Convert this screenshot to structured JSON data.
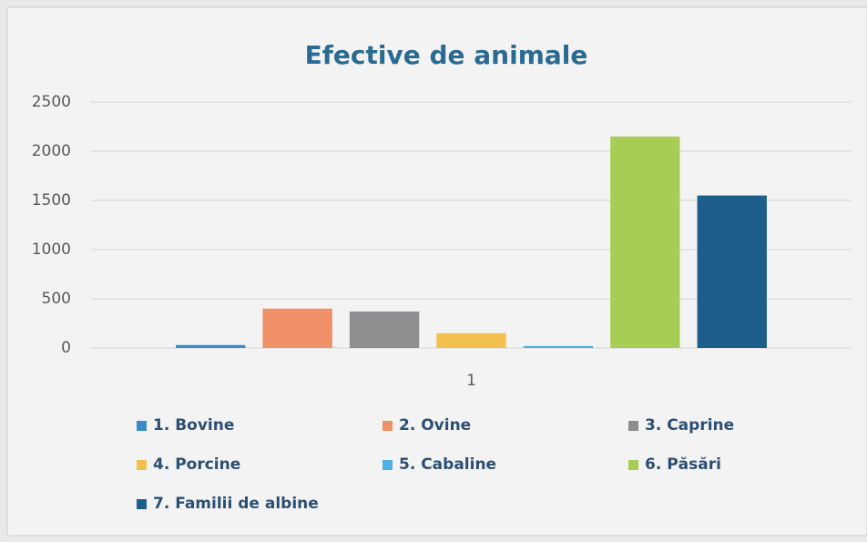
{
  "chart_data": {
    "type": "bar",
    "title": "Efective de animale",
    "categories": [
      "1"
    ],
    "series": [
      {
        "name": "1. Bovine",
        "color": "#3a8cc8",
        "values": [
          30
        ]
      },
      {
        "name": "2. Ovine",
        "color": "#ef9068",
        "values": [
          400
        ]
      },
      {
        "name": "3. Caprine",
        "color": "#8e8e90",
        "values": [
          370
        ]
      },
      {
        "name": "4. Porcine",
        "color": "#f2c04c",
        "values": [
          150
        ]
      },
      {
        "name": "5. Cabaline",
        "color": "#4fb0e4",
        "values": [
          20
        ]
      },
      {
        "name": "6. Păsări",
        "color": "#a8cd55",
        "values": [
          2150
        ]
      },
      {
        "name": "7. Familii de albine",
        "color": "#1d5f8a",
        "values": [
          1550
        ]
      }
    ],
    "ylim": [
      0,
      2500
    ],
    "yticks": [
      0,
      500,
      1000,
      1500,
      2000,
      2500
    ],
    "grid": true,
    "legend": "bottom"
  }
}
